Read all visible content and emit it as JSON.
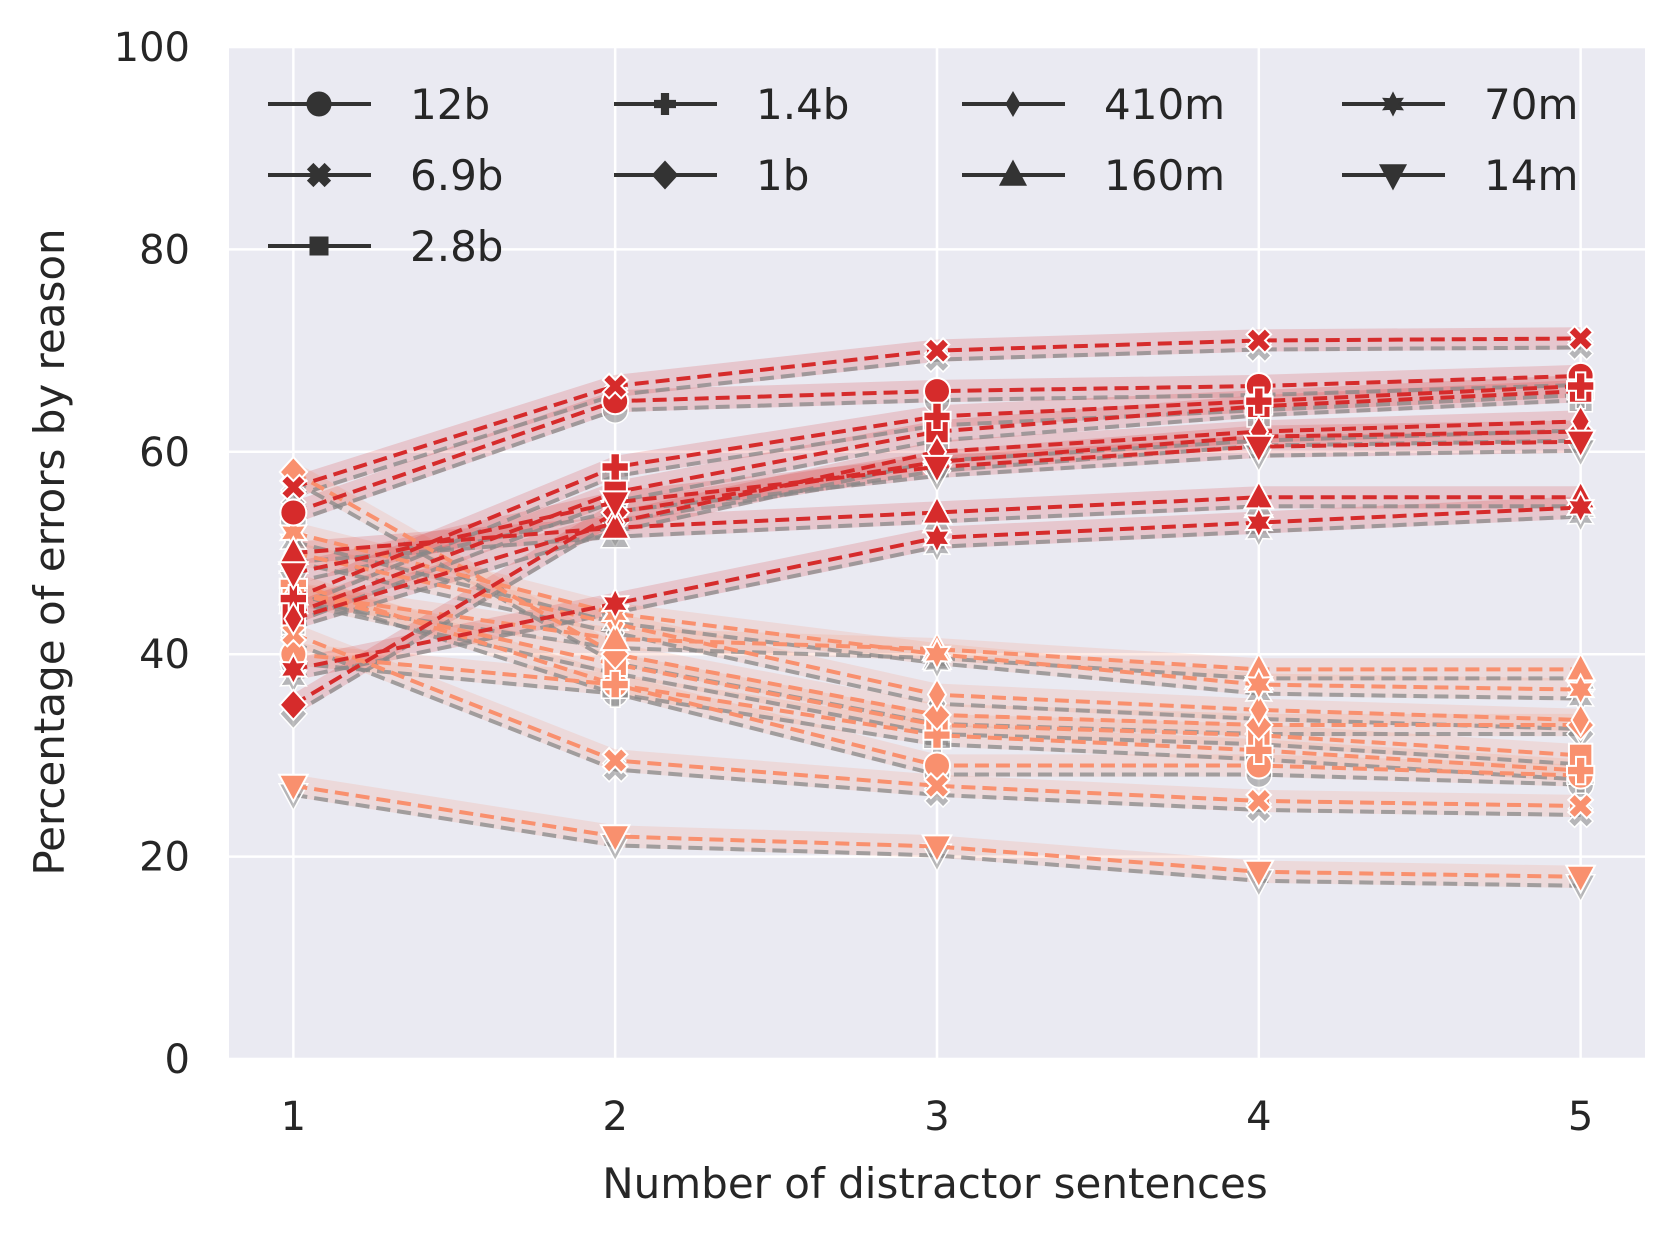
{
  "chart_data": {
    "type": "line",
    "title": "",
    "xlabel": "Number of distractor sentences",
    "ylabel": "Percentage of errors by reason",
    "x": [
      1,
      2,
      3,
      4,
      5
    ],
    "x_tick_labels": [
      "1",
      "2",
      "3",
      "4",
      "5"
    ],
    "y_tick_labels": [
      "0",
      "20",
      "40",
      "60",
      "80",
      "100"
    ],
    "xlim": [
      0.8,
      5.2
    ],
    "ylim": [
      0,
      100
    ],
    "grid": true,
    "legend_position": "top",
    "legend": [
      {
        "label": "12b",
        "marker": "circle"
      },
      {
        "label": "6.9b",
        "marker": "x"
      },
      {
        "label": "2.8b",
        "marker": "square"
      },
      {
        "label": "1.4b",
        "marker": "plus"
      },
      {
        "label": "1b",
        "marker": "diamond"
      },
      {
        "label": "410m",
        "marker": "thin-diamond"
      },
      {
        "label": "160m",
        "marker": "triangle-up"
      },
      {
        "label": "70m",
        "marker": "star"
      },
      {
        "label": "14m",
        "marker": "triangle-down"
      }
    ],
    "colors": {
      "reason_a": "#d62b2b",
      "reason_b": "#f9906e",
      "reference": "#888888",
      "background": "#eaeaf2"
    },
    "series_reason_a": [
      {
        "model": "12b",
        "values": [
          54,
          65,
          66,
          66.5,
          67.5
        ]
      },
      {
        "model": "6.9b",
        "values": [
          56.5,
          66.5,
          70,
          71,
          71.2
        ]
      },
      {
        "model": "2.8b",
        "values": [
          44,
          56,
          62,
          64.5,
          66
        ]
      },
      {
        "model": "1.4b",
        "values": [
          45.5,
          58.5,
          63.5,
          65,
          66.5
        ]
      },
      {
        "model": "1b",
        "values": [
          35,
          54,
          59,
          61.5,
          62
        ]
      },
      {
        "model": "410m",
        "values": [
          43.5,
          53,
          60,
          62,
          63
        ]
      },
      {
        "model": "160m",
        "values": [
          50,
          52.5,
          54,
          55.5,
          55.5
        ]
      },
      {
        "model": "70m",
        "values": [
          38.5,
          45,
          51.5,
          53,
          54.5
        ]
      },
      {
        "model": "14m",
        "values": [
          48,
          55,
          58.5,
          60.5,
          61
        ]
      }
    ],
    "series_reason_b": [
      {
        "model": "12b",
        "values": [
          40,
          37,
          29,
          29,
          28
        ]
      },
      {
        "model": "6.9b",
        "values": [
          42,
          29.5,
          27,
          25.5,
          25
        ]
      },
      {
        "model": "2.8b",
        "values": [
          46,
          39,
          33,
          32,
          30
        ]
      },
      {
        "model": "1.4b",
        "values": [
          47,
          37,
          32,
          30.5,
          28.5
        ]
      },
      {
        "model": "1b",
        "values": [
          58,
          40,
          34,
          33,
          33
        ]
      },
      {
        "model": "410m",
        "values": [
          50,
          43,
          36,
          34.5,
          33.5
        ]
      },
      {
        "model": "160m",
        "values": [
          46,
          41.5,
          40.5,
          38.5,
          38.5
        ]
      },
      {
        "model": "70m",
        "values": [
          52,
          44,
          40,
          37,
          36.5
        ]
      },
      {
        "model": "14m",
        "values": [
          27,
          22,
          21,
          18.5,
          18
        ]
      }
    ]
  }
}
